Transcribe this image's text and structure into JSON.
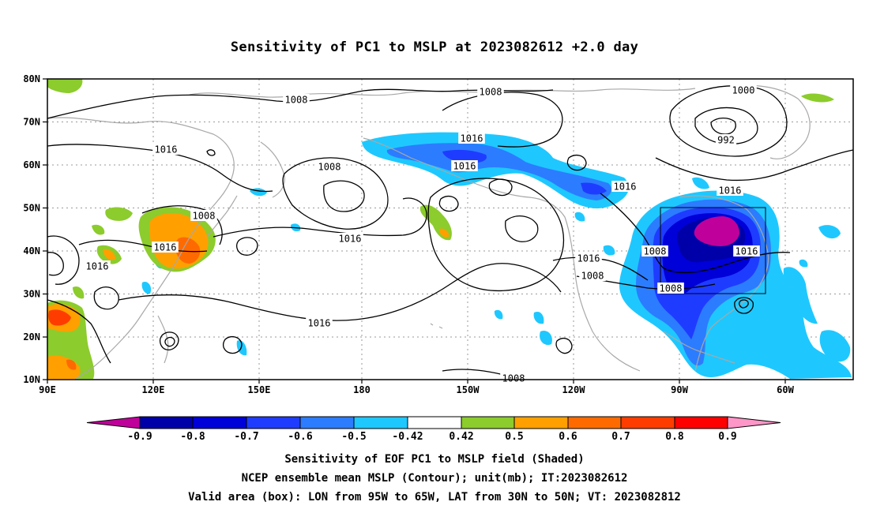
{
  "title": "Sensitivity of PC1 to MSLP at 2023082612 +2.0 day",
  "axes": {
    "lat_labels": [
      "80N",
      "70N",
      "60N",
      "50N",
      "40N",
      "30N",
      "20N",
      "10N"
    ],
    "lon_labels": [
      "90E",
      "120E",
      "150E",
      "180",
      "150W",
      "120W",
      "90W",
      "60W"
    ]
  },
  "contour_labels": [
    "1008",
    "1008",
    "1000",
    "992",
    "1016",
    "1016",
    "1016",
    "1008",
    "1016",
    "1016",
    "1008",
    "1016",
    "1016",
    "1008",
    "1016",
    "1008",
    "1016",
    "1016",
    "1008",
    "1016",
    "1008"
  ],
  "colorbar": {
    "ticks": [
      "-0.9",
      "-0.8",
      "-0.7",
      "-0.6",
      "-0.5",
      "-0.42",
      "0.42",
      "0.5",
      "0.6",
      "0.7",
      "0.8",
      "0.9"
    ],
    "colors": [
      "#c0009a",
      "#0000a8",
      "#0000d8",
      "#1e3cff",
      "#2c7cff",
      "#1ec8ff",
      "#ffffff",
      "#8ccc2c",
      "#ffa000",
      "#ff6a00",
      "#ff3c00",
      "#ff0000",
      "#ff96c8"
    ]
  },
  "valid_box": {
    "lon_from": "95W",
    "lon_to": "65W",
    "lat_from": "30N",
    "lat_to": "50N"
  },
  "captions": [
    "Sensitivity of EOF PC1 to MSLP field (Shaded)",
    "NCEP ensemble mean MSLP (Contour); unit(mb); IT:2023082612",
    "Valid area (box): LON from 95W to 65W, LAT from 30N to 50N; VT: 2023082812"
  ]
}
